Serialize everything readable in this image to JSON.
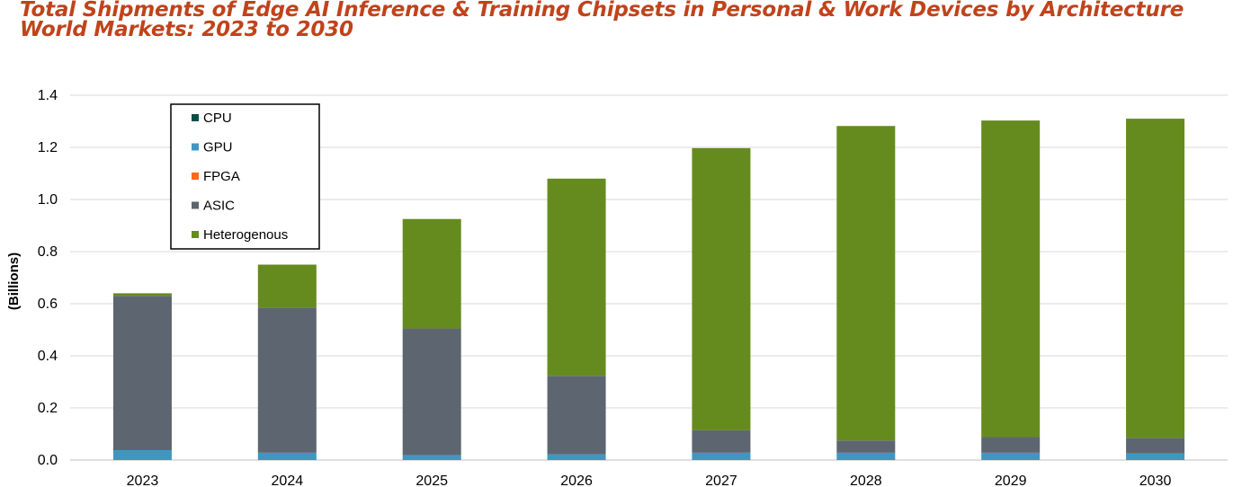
{
  "title": {
    "line1": "Total Shipments of Edge AI Inference & Training Chipsets in Personal & Work Devices by Architecture",
    "line2": "World Markets: 2023 to 2030",
    "color": "#c0431b"
  },
  "chart_data": {
    "type": "bar",
    "stacked": true,
    "title": "Total Shipments of Edge AI Inference & Training Chipsets in Personal & Work Devices by Architecture World Markets: 2023 to 2030",
    "xlabel": "",
    "ylabel": "(Billions)",
    "ylim": [
      0,
      1.4
    ],
    "yticks": [
      "0.0",
      "0.2",
      "0.4",
      "0.6",
      "0.8",
      "1.0",
      "1.2",
      "1.4"
    ],
    "grid": true,
    "legend_position": "top-left",
    "categories": [
      "2023",
      "2024",
      "2025",
      "2026",
      "2027",
      "2028",
      "2029",
      "2030"
    ],
    "series": [
      {
        "name": "CPU",
        "color": "#0b4f4a",
        "values": [
          0,
          0,
          0,
          0,
          0,
          0,
          0,
          0
        ]
      },
      {
        "name": "GPU",
        "color": "#3f97c1",
        "values": [
          0.038,
          0.028,
          0.018,
          0.022,
          0.028,
          0.028,
          0.028,
          0.025
        ]
      },
      {
        "name": "FPGA",
        "color": "#ff6a13",
        "values": [
          0,
          0,
          0,
          0,
          0,
          0,
          0,
          0
        ]
      },
      {
        "name": "ASIC",
        "color": "#5d6670",
        "values": [
          0.592,
          0.557,
          0.487,
          0.301,
          0.087,
          0.047,
          0.06,
          0.06
        ]
      },
      {
        "name": "Heterogenous",
        "color": "#658b1f",
        "values": [
          0.01,
          0.165,
          0.42,
          0.757,
          1.082,
          1.207,
          1.215,
          1.225
        ]
      }
    ]
  }
}
